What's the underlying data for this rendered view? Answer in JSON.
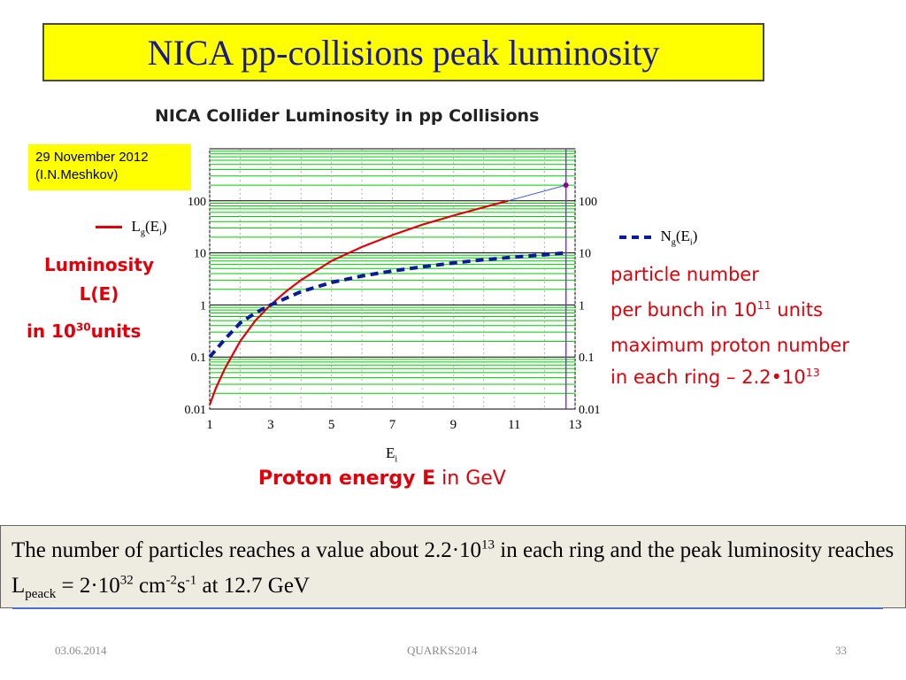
{
  "slide": {
    "title": "NICA pp-collisions peak luminosity",
    "date_note": [
      "29 November 2012",
      "(I.N.Meshkov)"
    ],
    "left_label": {
      "line1": "Luminosity",
      "line2": "L(E)",
      "line3_pre": "in 10",
      "line3_exp": "30",
      "line3_post": "units"
    },
    "right_label": {
      "line1": "particle number",
      "line2_pre": "per bunch in 10",
      "line2_exp": "11",
      "line2_post": " units",
      "line3": "maximum proton number",
      "line4_pre": "in each ring ",
      "line4_val": "– 2.2•10",
      "line4_exp": "13"
    },
    "note": {
      "p1": "The number of particles reaches a value about 2.2·10",
      "p1_exp": "13",
      "p2": " in each ring and the peak luminosity reaches L",
      "p2_sub": "peack",
      "p3": " = 2·10",
      "p3_exp": "32",
      "p4": " cm",
      "p4_exp": "-2",
      "p5": "s",
      "p5_exp": "-1",
      "p6": " at 12.7 GeV"
    },
    "footer": {
      "date": "03.06.2014",
      "center": "QUARKS2014",
      "page": "33"
    }
  },
  "chart_data": {
    "type": "line",
    "title": "NICA Collider Luminosity in pp Collisions",
    "xlabel_bold": "Proton energy E",
    "xlabel_rest": " in GeV",
    "x_axis_symbol": "E",
    "x_axis_symbol_sub": "i",
    "xlim": [
      1,
      13
    ],
    "ylim": [
      0.01,
      1000
    ],
    "yscale": "log",
    "x_ticks": [
      "1",
      "3",
      "5",
      "7",
      "9",
      "11",
      "13"
    ],
    "y_ticks": [
      "0.01",
      "0.1",
      "1",
      "10",
      "100"
    ],
    "grid": true,
    "colors": {
      "luminosity": "#e0000a",
      "particles": "#0a1a9a",
      "grid": "#00cc00",
      "marker_line": "#8a2be2"
    },
    "series": [
      {
        "name": "L_g(E_i)",
        "style": "solid",
        "x": [
          1.0,
          1.2,
          1.5,
          2.0,
          2.5,
          3.0,
          3.5,
          4.0,
          5.0,
          6.0,
          7.0,
          8.0,
          9.0,
          10.0,
          10.8
        ],
        "y": [
          0.012,
          0.025,
          0.06,
          0.2,
          0.5,
          1.0,
          1.8,
          3.0,
          7.0,
          13.0,
          22.0,
          35.0,
          52.0,
          75.0,
          100.0
        ]
      },
      {
        "name": "N_g(E_i)",
        "style": "dashed",
        "x": [
          1.0,
          1.5,
          2.0,
          2.5,
          3.0,
          4.0,
          5.0,
          6.0,
          7.0,
          8.0,
          9.0,
          10.0,
          11.0,
          12.0,
          12.7
        ],
        "y": [
          0.1,
          0.22,
          0.45,
          0.7,
          1.0,
          1.8,
          2.7,
          3.6,
          4.5,
          5.4,
          6.4,
          7.4,
          8.3,
          9.2,
          10.0
        ]
      }
    ],
    "extrapolation": {
      "x": [
        10.8,
        12.7
      ],
      "y": [
        100.0,
        200.0
      ],
      "peak_marker_x": 12.7
    }
  }
}
